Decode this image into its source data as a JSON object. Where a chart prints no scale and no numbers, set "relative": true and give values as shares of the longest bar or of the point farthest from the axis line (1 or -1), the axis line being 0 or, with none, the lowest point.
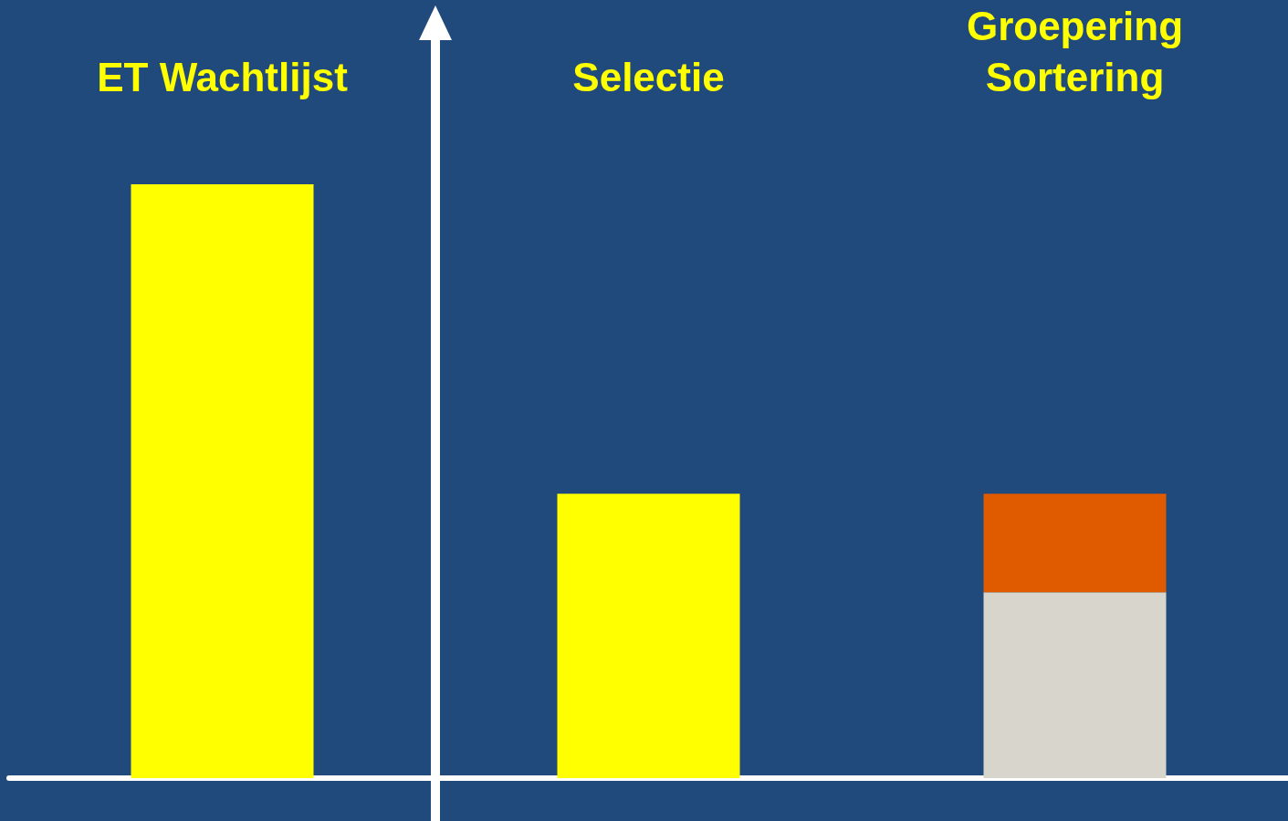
{
  "chart_data": {
    "type": "bar",
    "relative": true,
    "stacked": true,
    "categories": [
      "ET Wachtlijst",
      "Selectie",
      "Groepering\nSortering"
    ],
    "series": [
      {
        "color": "#ffff00",
        "values": [
          1,
          0.479,
          null
        ]
      },
      {
        "color": "#d8d6cc",
        "values": [
          null,
          null,
          0.313
        ]
      },
      {
        "color": "#e05a00",
        "values": [
          null,
          null,
          0.166
        ]
      }
    ]
  }
}
